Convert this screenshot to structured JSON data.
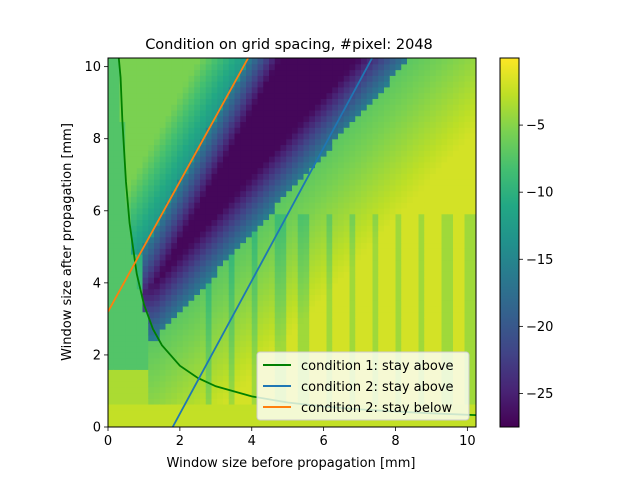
{
  "chart_data": {
    "type": "heatmap",
    "title": "Condition on grid spacing, #pixel: 2048",
    "xlabel": "Window size before propagation [mm]",
    "ylabel": "Window size after propagation [mm]",
    "xlim": [
      0,
      10.24
    ],
    "ylim": [
      0,
      10.24
    ],
    "xticks": [
      0,
      2,
      4,
      6,
      8,
      10
    ],
    "xtick_labels": [
      "0",
      "2",
      "4",
      "6",
      "8",
      "10"
    ],
    "yticks": [
      0,
      2,
      4,
      6,
      8,
      10
    ],
    "ytick_labels": [
      "0",
      "2",
      "4",
      "6",
      "8",
      "10"
    ],
    "colorbar": {
      "range": [
        -27.5,
        0
      ],
      "ticks": [
        -5,
        -10,
        -15,
        -20,
        -25
      ],
      "tick_labels": [
        "−5",
        "−10",
        "−15",
        "−20",
        "−25"
      ],
      "colormap": "viridis"
    },
    "series": [
      {
        "name": "condition 1: stay above",
        "color": "#008000",
        "x": [
          0.3,
          0.35,
          0.4,
          0.5,
          0.6,
          0.8,
          1.0,
          1.25,
          1.5,
          2.0,
          2.5,
          3.0,
          4.0,
          5.0,
          6.0,
          7.0,
          8.0,
          9.0,
          10.24
        ],
        "y": [
          10.24,
          9.7,
          8.5,
          6.8,
          5.66,
          4.25,
          3.4,
          2.72,
          2.27,
          1.7,
          1.36,
          1.13,
          0.85,
          0.68,
          0.57,
          0.49,
          0.43,
          0.38,
          0.33
        ]
      },
      {
        "name": "condition 2: stay above",
        "color": "#1f77b4",
        "x": [
          1.8,
          7.35
        ],
        "y": [
          0,
          10.24
        ]
      },
      {
        "name": "condition 2: stay below",
        "color": "#ff7f0e",
        "x": [
          0,
          3.9
        ],
        "y": [
          3.2,
          10.24
        ]
      }
    ],
    "legend": "lower-right"
  }
}
